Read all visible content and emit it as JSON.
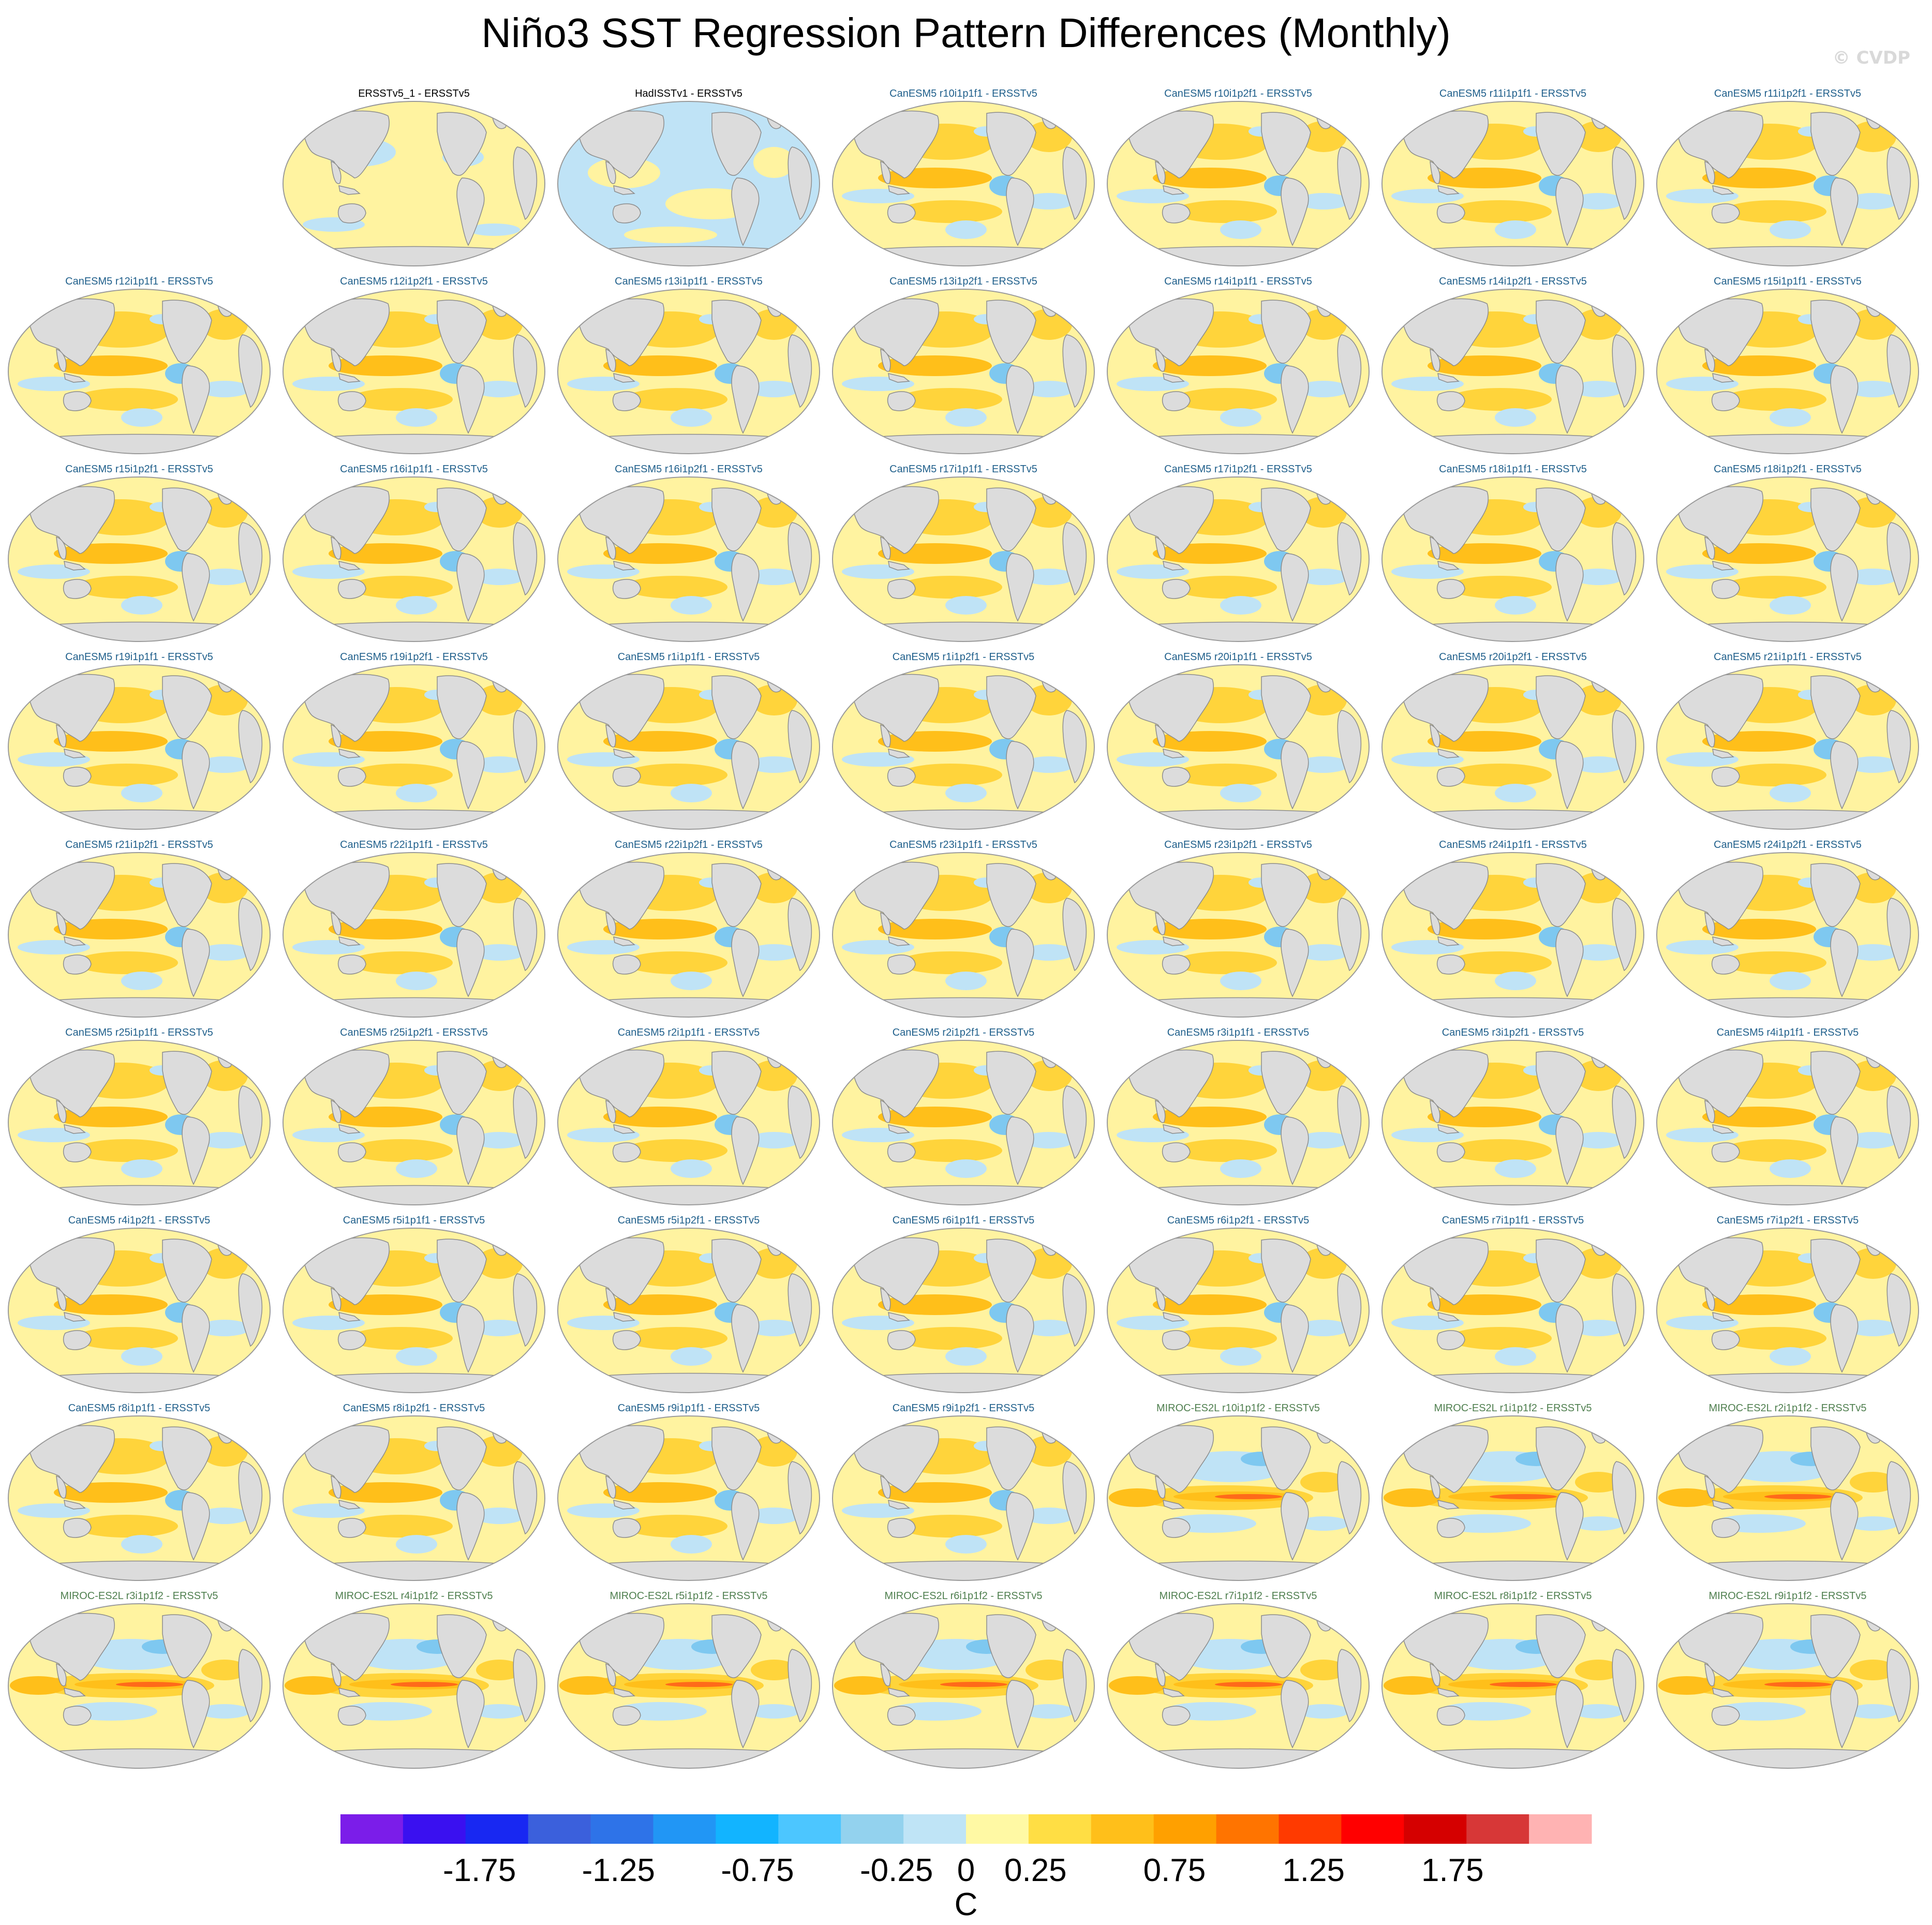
{
  "title": "Niño3 SST Regression Pattern Differences (Monthly)",
  "watermark": "© CVDP",
  "colors": {
    "obs_title": "#000000",
    "canesm_title": "#1f5f8b",
    "miroc_title": "#4f7f4f",
    "land": "#dcdcdc",
    "coast": "#8c8c8c"
  },
  "panels": [
    {
      "label": "ERSSTv5_1 - ERSSTv5",
      "group": "obs",
      "pattern": "flat"
    },
    {
      "label": "HadISSTv1 - ERSSTv5",
      "group": "obs",
      "pattern": "cool"
    },
    {
      "label": "CanESM5 r10i1p1f1 - ERSSTv5",
      "group": "canesm",
      "pattern": "canesm"
    },
    {
      "label": "CanESM5 r10i1p2f1 - ERSSTv5",
      "group": "canesm",
      "pattern": "canesm"
    },
    {
      "label": "CanESM5 r11i1p1f1 - ERSSTv5",
      "group": "canesm",
      "pattern": "canesm"
    },
    {
      "label": "CanESM5 r11i1p2f1 - ERSSTv5",
      "group": "canesm",
      "pattern": "canesm"
    },
    {
      "label": "CanESM5 r12i1p1f1 - ERSSTv5",
      "group": "canesm",
      "pattern": "canesm"
    },
    {
      "label": "CanESM5 r12i1p2f1 - ERSSTv5",
      "group": "canesm",
      "pattern": "canesm"
    },
    {
      "label": "CanESM5 r13i1p1f1 - ERSSTv5",
      "group": "canesm",
      "pattern": "canesm"
    },
    {
      "label": "CanESM5 r13i1p2f1 - ERSSTv5",
      "group": "canesm",
      "pattern": "canesm"
    },
    {
      "label": "CanESM5 r14i1p1f1 - ERSSTv5",
      "group": "canesm",
      "pattern": "canesm"
    },
    {
      "label": "CanESM5 r14i1p2f1 - ERSSTv5",
      "group": "canesm",
      "pattern": "canesm"
    },
    {
      "label": "CanESM5 r15i1p1f1 - ERSSTv5",
      "group": "canesm",
      "pattern": "canesm"
    },
    {
      "label": "CanESM5 r15i1p2f1 - ERSSTv5",
      "group": "canesm",
      "pattern": "canesm"
    },
    {
      "label": "CanESM5 r16i1p1f1 - ERSSTv5",
      "group": "canesm",
      "pattern": "canesm"
    },
    {
      "label": "CanESM5 r16i1p2f1 - ERSSTv5",
      "group": "canesm",
      "pattern": "canesm"
    },
    {
      "label": "CanESM5 r17i1p1f1 - ERSSTv5",
      "group": "canesm",
      "pattern": "canesm"
    },
    {
      "label": "CanESM5 r17i1p2f1 - ERSSTv5",
      "group": "canesm",
      "pattern": "canesm"
    },
    {
      "label": "CanESM5 r18i1p1f1 - ERSSTv5",
      "group": "canesm",
      "pattern": "canesm"
    },
    {
      "label": "CanESM5 r18i1p2f1 - ERSSTv5",
      "group": "canesm",
      "pattern": "canesm"
    },
    {
      "label": "CanESM5 r19i1p1f1 - ERSSTv5",
      "group": "canesm",
      "pattern": "canesm"
    },
    {
      "label": "CanESM5 r19i1p2f1 - ERSSTv5",
      "group": "canesm",
      "pattern": "canesm"
    },
    {
      "label": "CanESM5 r1i1p1f1 - ERSSTv5",
      "group": "canesm",
      "pattern": "canesm"
    },
    {
      "label": "CanESM5 r1i1p2f1 - ERSSTv5",
      "group": "canesm",
      "pattern": "canesm"
    },
    {
      "label": "CanESM5 r20i1p1f1 - ERSSTv5",
      "group": "canesm",
      "pattern": "canesm"
    },
    {
      "label": "CanESM5 r20i1p2f1 - ERSSTv5",
      "group": "canesm",
      "pattern": "canesm"
    },
    {
      "label": "CanESM5 r21i1p1f1 - ERSSTv5",
      "group": "canesm",
      "pattern": "canesm"
    },
    {
      "label": "CanESM5 r21i1p2f1 - ERSSTv5",
      "group": "canesm",
      "pattern": "canesm"
    },
    {
      "label": "CanESM5 r22i1p1f1 - ERSSTv5",
      "group": "canesm",
      "pattern": "canesm"
    },
    {
      "label": "CanESM5 r22i1p2f1 - ERSSTv5",
      "group": "canesm",
      "pattern": "canesm"
    },
    {
      "label": "CanESM5 r23i1p1f1 - ERSSTv5",
      "group": "canesm",
      "pattern": "canesm"
    },
    {
      "label": "CanESM5 r23i1p2f1 - ERSSTv5",
      "group": "canesm",
      "pattern": "canesm"
    },
    {
      "label": "CanESM5 r24i1p1f1 - ERSSTv5",
      "group": "canesm",
      "pattern": "canesm"
    },
    {
      "label": "CanESM5 r24i1p2f1 - ERSSTv5",
      "group": "canesm",
      "pattern": "canesm"
    },
    {
      "label": "CanESM5 r25i1p1f1 - ERSSTv5",
      "group": "canesm",
      "pattern": "canesm"
    },
    {
      "label": "CanESM5 r25i1p2f1 - ERSSTv5",
      "group": "canesm",
      "pattern": "canesm"
    },
    {
      "label": "CanESM5 r2i1p1f1 - ERSSTv5",
      "group": "canesm",
      "pattern": "canesm"
    },
    {
      "label": "CanESM5 r2i1p2f1 - ERSSTv5",
      "group": "canesm",
      "pattern": "canesm"
    },
    {
      "label": "CanESM5 r3i1p1f1 - ERSSTv5",
      "group": "canesm",
      "pattern": "canesm"
    },
    {
      "label": "CanESM5 r3i1p2f1 - ERSSTv5",
      "group": "canesm",
      "pattern": "canesm"
    },
    {
      "label": "CanESM5 r4i1p1f1 - ERSSTv5",
      "group": "canesm",
      "pattern": "canesm"
    },
    {
      "label": "CanESM5 r4i1p2f1 - ERSSTv5",
      "group": "canesm",
      "pattern": "canesm"
    },
    {
      "label": "CanESM5 r5i1p1f1 - ERSSTv5",
      "group": "canesm",
      "pattern": "canesm"
    },
    {
      "label": "CanESM5 r5i1p2f1 - ERSSTv5",
      "group": "canesm",
      "pattern": "canesm"
    },
    {
      "label": "CanESM5 r6i1p1f1 - ERSSTv5",
      "group": "canesm",
      "pattern": "canesm"
    },
    {
      "label": "CanESM5 r6i1p2f1 - ERSSTv5",
      "group": "canesm",
      "pattern": "canesm"
    },
    {
      "label": "CanESM5 r7i1p1f1 - ERSSTv5",
      "group": "canesm",
      "pattern": "canesm"
    },
    {
      "label": "CanESM5 r7i1p2f1 - ERSSTv5",
      "group": "canesm",
      "pattern": "canesm"
    },
    {
      "label": "CanESM5 r8i1p1f1 - ERSSTv5",
      "group": "canesm",
      "pattern": "canesm"
    },
    {
      "label": "CanESM5 r8i1p2f1 - ERSSTv5",
      "group": "canesm",
      "pattern": "canesm"
    },
    {
      "label": "CanESM5 r9i1p1f1 - ERSSTv5",
      "group": "canesm",
      "pattern": "canesm"
    },
    {
      "label": "CanESM5 r9i1p2f1 - ERSSTv5",
      "group": "canesm",
      "pattern": "canesm"
    },
    {
      "label": "MIROC-ES2L r10i1p1f2 - ERSSTv5",
      "group": "miroc",
      "pattern": "miroc"
    },
    {
      "label": "MIROC-ES2L r1i1p1f2 - ERSSTv5",
      "group": "miroc",
      "pattern": "miroc"
    },
    {
      "label": "MIROC-ES2L r2i1p1f2 - ERSSTv5",
      "group": "miroc",
      "pattern": "miroc"
    },
    {
      "label": "MIROC-ES2L r3i1p1f2 - ERSSTv5",
      "group": "miroc",
      "pattern": "miroc"
    },
    {
      "label": "MIROC-ES2L r4i1p1f2 - ERSSTv5",
      "group": "miroc",
      "pattern": "miroc"
    },
    {
      "label": "MIROC-ES2L r5i1p1f2 - ERSSTv5",
      "group": "miroc",
      "pattern": "miroc"
    },
    {
      "label": "MIROC-ES2L r6i1p1f2 - ERSSTv5",
      "group": "miroc",
      "pattern": "miroc"
    },
    {
      "label": "MIROC-ES2L r7i1p1f2 - ERSSTv5",
      "group": "miroc",
      "pattern": "miroc"
    },
    {
      "label": "MIROC-ES2L r8i1p1f2 - ERSSTv5",
      "group": "miroc",
      "pattern": "miroc"
    },
    {
      "label": "MIROC-ES2L r9i1p1f2 - ERSSTv5",
      "group": "miroc",
      "pattern": "miroc"
    }
  ],
  "chart_data": {
    "type": "heatmap",
    "title": "Niño3 SST Regression Pattern Differences (Monthly)",
    "panel_count": 62,
    "grid": {
      "columns": 7,
      "rows": 9,
      "first_row_offset": 1
    },
    "projection": "robinson-like, Pacific centered",
    "colorbar": {
      "unit": "C",
      "orientation": "horizontal",
      "bins": 20,
      "range": [
        -2.25,
        2.25
      ],
      "colors": [
        "#7b1de9",
        "#3a10f0",
        "#1828f2",
        "#3b60dc",
        "#2e73e8",
        "#2196f5",
        "#12b4ff",
        "#4cc6ff",
        "#93d2ee",
        "#bfe4f6",
        "#fff9a4",
        "#ffde44",
        "#ffbf1a",
        "#ffa000",
        "#ff7400",
        "#ff3a00",
        "#ff0000",
        "#d50000",
        "#d73737",
        "#ffb3b3"
      ],
      "tick_values": [
        -1.75,
        -1.25,
        -0.75,
        -0.25,
        0,
        0.25,
        0.75,
        1.25,
        1.75
      ],
      "tick_labels": [
        "-1.75",
        "-1.25",
        "-0.75",
        "-0.25",
        "0",
        "0.25",
        "0.75",
        "1.25",
        "1.75"
      ]
    }
  }
}
